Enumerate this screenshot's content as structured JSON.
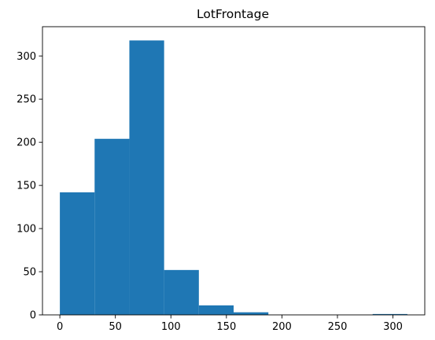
{
  "chart_data": {
    "type": "bar",
    "title": "LotFrontage",
    "xlabel": "",
    "ylabel": "",
    "bin_edges": [
      0,
      31.3,
      62.6,
      93.9,
      125.2,
      156.5,
      187.8,
      219.1,
      250.4,
      281.7,
      313
    ],
    "counts": [
      142,
      204,
      318,
      52,
      11,
      3,
      0,
      0,
      0,
      1
    ],
    "xlim": [
      -15.65,
      328.65
    ],
    "ylim": [
      0,
      333.9
    ],
    "x_ticks": [
      0,
      50,
      100,
      150,
      200,
      250,
      300
    ],
    "x_tick_labels": [
      "0",
      "50",
      "100",
      "150",
      "200",
      "250",
      "300"
    ],
    "y_ticks": [
      0,
      50,
      100,
      150,
      200,
      250,
      300
    ],
    "y_tick_labels": [
      "0",
      "50",
      "100",
      "150",
      "200",
      "250",
      "300"
    ],
    "bar_color": "#1f77b4",
    "grid": false,
    "legend": "none"
  }
}
